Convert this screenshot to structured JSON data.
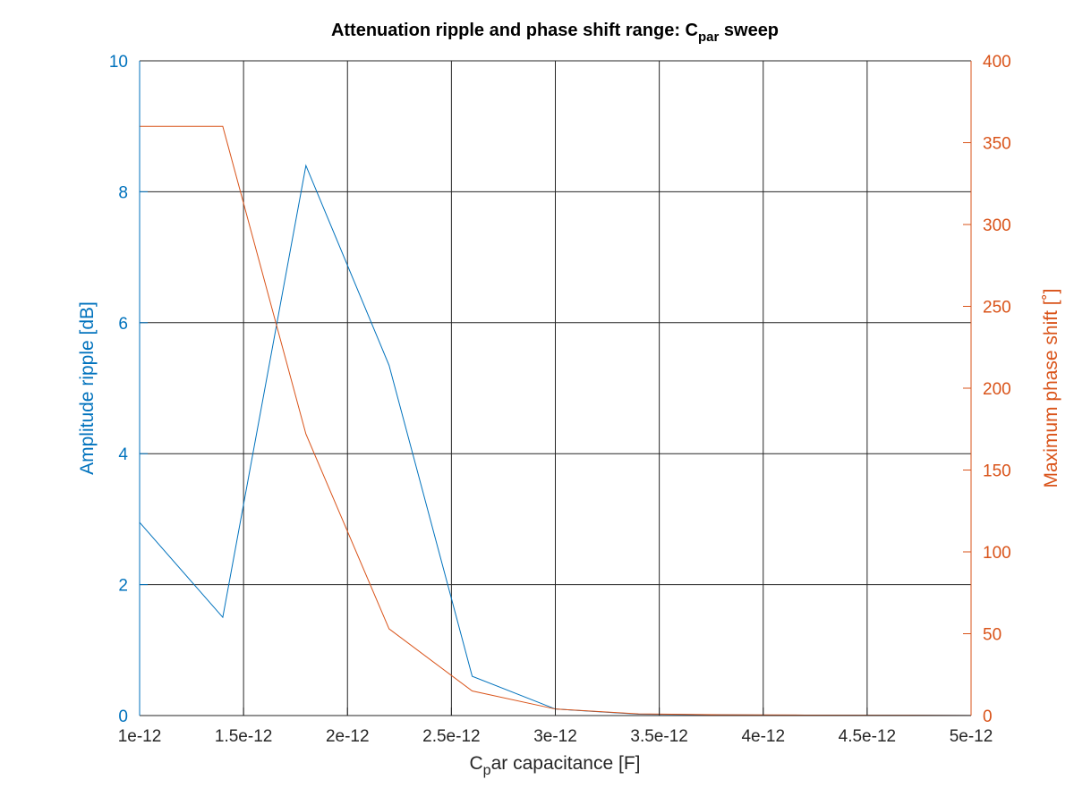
{
  "chart_data": {
    "type": "line",
    "title": "Attenuation ripple and phase shift range: C",
    "title_subscript": "par",
    "title_suffix": " sweep",
    "xlabel_prefix": "C",
    "xlabel_subscript": "p",
    "xlabel_suffix": "ar capacitance [F]",
    "ylabel_left": "Amplitude ripple [dB]",
    "ylabel_right": "Maximum phase shift [˚]",
    "xlim": [
      1e-12,
      5e-12
    ],
    "ylim_left": [
      0,
      10
    ],
    "ylim_right": [
      0,
      400
    ],
    "grid": true,
    "x_ticks": [
      {
        "value": 1e-12,
        "label": "1e-12"
      },
      {
        "value": 1.5e-12,
        "label": "1.5e-12"
      },
      {
        "value": 2e-12,
        "label": "2e-12"
      },
      {
        "value": 2.5e-12,
        "label": "2.5e-12"
      },
      {
        "value": 3e-12,
        "label": "3e-12"
      },
      {
        "value": 3.5e-12,
        "label": "3.5e-12"
      },
      {
        "value": 4e-12,
        "label": "4e-12"
      },
      {
        "value": 4.5e-12,
        "label": "4.5e-12"
      },
      {
        "value": 5e-12,
        "label": "5e-12"
      }
    ],
    "y_left_ticks": [
      {
        "value": 0,
        "label": "0"
      },
      {
        "value": 2,
        "label": "2"
      },
      {
        "value": 4,
        "label": "4"
      },
      {
        "value": 6,
        "label": "6"
      },
      {
        "value": 8,
        "label": "8"
      },
      {
        "value": 10,
        "label": "10"
      }
    ],
    "y_right_ticks": [
      {
        "value": 0,
        "label": "0"
      },
      {
        "value": 50,
        "label": "50"
      },
      {
        "value": 100,
        "label": "100"
      },
      {
        "value": 150,
        "label": "150"
      },
      {
        "value": 200,
        "label": "200"
      },
      {
        "value": 250,
        "label": "250"
      },
      {
        "value": 300,
        "label": "300"
      },
      {
        "value": 350,
        "label": "350"
      },
      {
        "value": 400,
        "label": "400"
      }
    ],
    "series": [
      {
        "axis": "left",
        "color": "#0072bd",
        "x": [
          1e-12,
          1.4e-12,
          1.8e-12,
          2.2e-12,
          2.6e-12,
          3e-12,
          3.4e-12,
          3.8e-12,
          4.2e-12,
          4.6e-12,
          5e-12
        ],
        "values": [
          2.95,
          1.5,
          8.4,
          5.35,
          0.6,
          0.1,
          0.02,
          0.01,
          0.005,
          0.005,
          0.002
        ]
      },
      {
        "axis": "right",
        "color": "#d95319",
        "x": [
          1e-12,
          1.4e-12,
          1.8e-12,
          2.2e-12,
          2.6e-12,
          3e-12,
          3.4e-12,
          3.8e-12,
          4.2e-12,
          4.6e-12,
          5e-12
        ],
        "values": [
          360,
          360,
          172,
          53,
          15,
          4,
          1,
          0.5,
          0.3,
          0.2,
          0.1
        ]
      }
    ],
    "colors": {
      "left_axis": "#0072bd",
      "right_axis": "#d95319",
      "x_axis": "#262626",
      "grid": "#262626"
    }
  }
}
